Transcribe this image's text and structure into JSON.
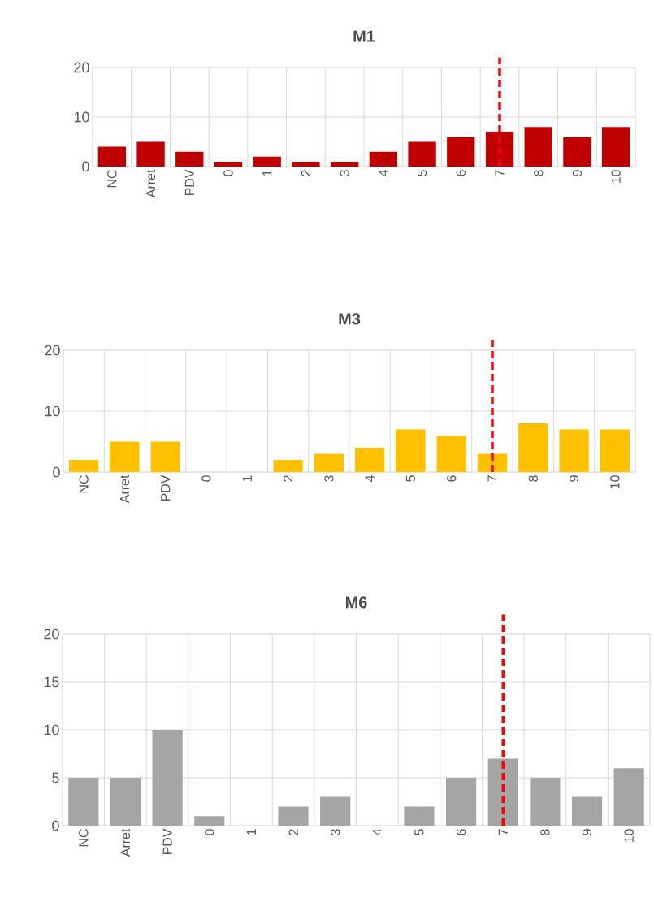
{
  "chart_data": [
    {
      "type": "bar",
      "title": "M1",
      "categories": [
        "NC",
        "Arret",
        "PDV",
        "0",
        "1",
        "2",
        "3",
        "4",
        "5",
        "6",
        "7",
        "8",
        "9",
        "10"
      ],
      "values": [
        4,
        5,
        3,
        1,
        2,
        1,
        1,
        3,
        5,
        6,
        7,
        8,
        6,
        8
      ],
      "color": "#c00000",
      "ylim": [
        0,
        20
      ],
      "yticks": [
        0,
        10,
        20
      ],
      "grid": true,
      "ref_lines": [
        {
          "axis": "x",
          "value": "7",
          "color": "#ff0000",
          "line_style": "dashed"
        }
      ]
    },
    {
      "type": "bar",
      "title": "M3",
      "categories": [
        "NC",
        "Arret",
        "PDV",
        "0",
        "1",
        "2",
        "3",
        "4",
        "5",
        "6",
        "7",
        "8",
        "9",
        "10"
      ],
      "values": [
        2,
        5,
        5,
        0,
        0,
        2,
        3,
        4,
        7,
        6,
        3,
        8,
        7,
        7
      ],
      "color": "#ffc000",
      "ylim": [
        0,
        20
      ],
      "yticks": [
        0,
        10,
        20
      ],
      "grid": true,
      "ref_lines": [
        {
          "axis": "x",
          "value": "7",
          "color": "#ff0000",
          "line_style": "dashed"
        }
      ]
    },
    {
      "type": "bar",
      "title": "M6",
      "categories": [
        "NC",
        "Arret",
        "PDV",
        "0",
        "1",
        "2",
        "3",
        "4",
        "5",
        "6",
        "7",
        "8",
        "9",
        "10"
      ],
      "values": [
        5,
        5,
        10,
        1,
        0,
        2,
        3,
        0,
        2,
        5,
        7,
        5,
        3,
        6
      ],
      "color": "#a5a5a5",
      "ylim": [
        0,
        20
      ],
      "yticks": [
        0,
        5,
        10,
        15,
        20
      ],
      "grid": true,
      "ref_lines": [
        {
          "axis": "x",
          "value": "7",
          "color": "#ff0000",
          "line_style": "dashed"
        }
      ]
    }
  ]
}
